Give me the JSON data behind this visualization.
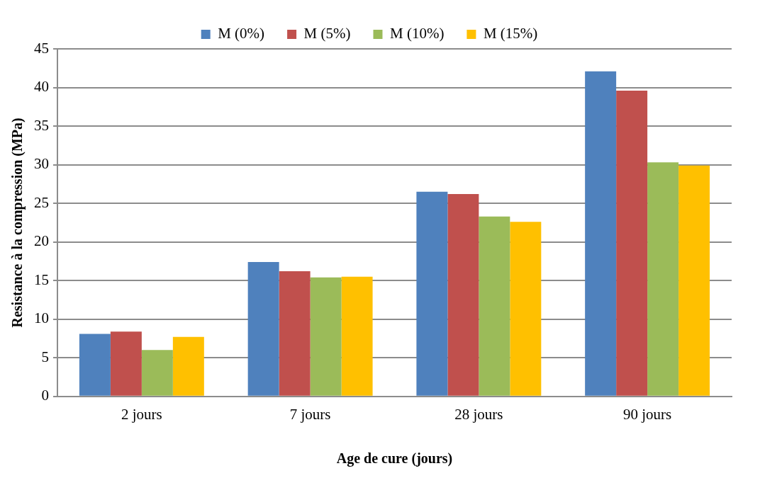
{
  "chart_data": {
    "type": "bar",
    "xlabel": "Age de cure (jours)",
    "ylabel": "Resistance à la compression (MPa)",
    "categories": [
      "2 jours",
      "7 jours",
      "28 jours",
      "90 jours"
    ],
    "series": [
      {
        "name": "M (0%)",
        "color": "#4f81bd",
        "values": [
          8.1,
          17.4,
          26.5,
          42.1
        ]
      },
      {
        "name": "M (5%)",
        "color": "#c0504d",
        "values": [
          8.4,
          16.2,
          26.2,
          39.6
        ]
      },
      {
        "name": "M (10%)",
        "color": "#9bbb59",
        "values": [
          6.0,
          15.4,
          23.3,
          30.3
        ]
      },
      {
        "name": "M (15%)",
        "color": "#ffc000",
        "values": [
          7.7,
          15.5,
          22.6,
          29.9
        ]
      }
    ],
    "ylim": [
      0,
      45
    ],
    "yticks": [
      0,
      5,
      10,
      15,
      20,
      25,
      30,
      35,
      40,
      45
    ],
    "grid": "y",
    "legend": "top"
  }
}
